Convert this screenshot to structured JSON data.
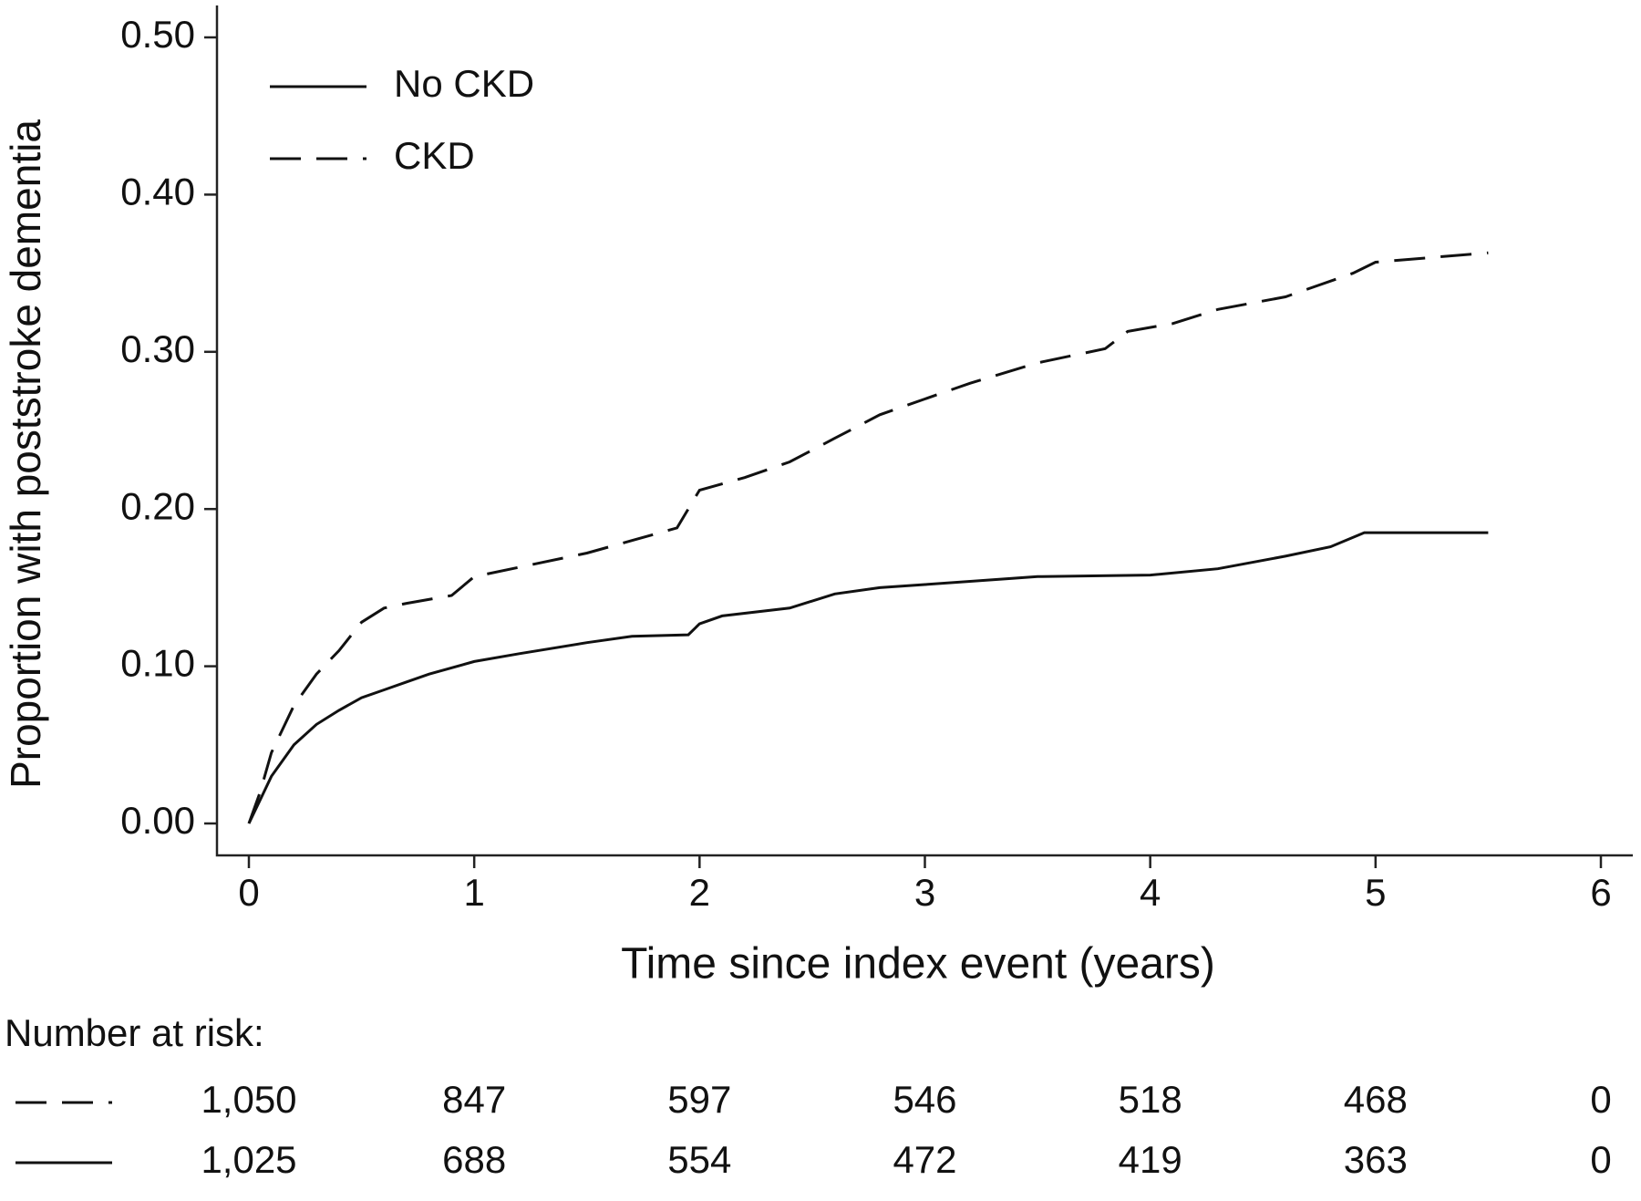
{
  "chart_data": {
    "type": "line",
    "y_label": "Proportion with poststroke dementia",
    "x_label": "Time since index event (years)",
    "xlim": [
      0,
      6
    ],
    "xticks": [
      0,
      1,
      2,
      3,
      4,
      5,
      6
    ],
    "ylim": [
      0,
      0.5
    ],
    "yticks": [
      {
        "value": 0,
        "label": "0.00"
      },
      {
        "value": 0.1,
        "label": "0.10"
      },
      {
        "value": 0.2,
        "label": "0.20"
      },
      {
        "value": 0.3,
        "label": "0.30"
      },
      {
        "value": 0.4,
        "label": "0.40"
      },
      {
        "value": 0.5,
        "label": "0.50"
      }
    ],
    "legend": "upper left",
    "series": [
      {
        "name": "No CKD",
        "color": "#111111",
        "line_style": "solid",
        "x": [
          0,
          0.05,
          0.1,
          0.2,
          0.3,
          0.4,
          0.5,
          0.6,
          0.7,
          0.8,
          1.0,
          1.2,
          1.5,
          1.7,
          1.95,
          2.0,
          2.1,
          2.4,
          2.6,
          2.8,
          3.0,
          3.5,
          4.0,
          4.3,
          4.6,
          4.8,
          4.95,
          5.5
        ],
        "values": [
          0,
          0.015,
          0.03,
          0.05,
          0.063,
          0.072,
          0.08,
          0.085,
          0.09,
          0.095,
          0.103,
          0.108,
          0.115,
          0.119,
          0.12,
          0.127,
          0.132,
          0.137,
          0.146,
          0.15,
          0.152,
          0.157,
          0.158,
          0.162,
          0.17,
          0.176,
          0.185,
          0.185
        ]
      },
      {
        "name": "CKD",
        "color": "#111111",
        "line_style": "dashed",
        "x": [
          0,
          0.05,
          0.1,
          0.2,
          0.3,
          0.4,
          0.5,
          0.6,
          0.7,
          0.9,
          1.0,
          1.2,
          1.5,
          1.7,
          1.9,
          2.0,
          2.2,
          2.4,
          2.6,
          2.8,
          3.0,
          3.2,
          3.5,
          3.8,
          3.9,
          4.1,
          4.3,
          4.6,
          4.9,
          5.0,
          5.5
        ],
        "values": [
          0,
          0.02,
          0.045,
          0.075,
          0.095,
          0.11,
          0.128,
          0.137,
          0.14,
          0.145,
          0.157,
          0.163,
          0.172,
          0.18,
          0.188,
          0.212,
          0.22,
          0.23,
          0.245,
          0.26,
          0.27,
          0.28,
          0.293,
          0.302,
          0.313,
          0.318,
          0.327,
          0.335,
          0.35,
          0.357,
          0.363
        ]
      }
    ],
    "at_risk": {
      "title": "Number at risk:",
      "rows": [
        {
          "line_style": "dashed",
          "counts": [
            "1,050",
            "847",
            "597",
            "546",
            "518",
            "468",
            "0"
          ]
        },
        {
          "line_style": "solid",
          "counts": [
            "1,025",
            "688",
            "554",
            "472",
            "419",
            "363",
            "0"
          ]
        }
      ]
    }
  }
}
